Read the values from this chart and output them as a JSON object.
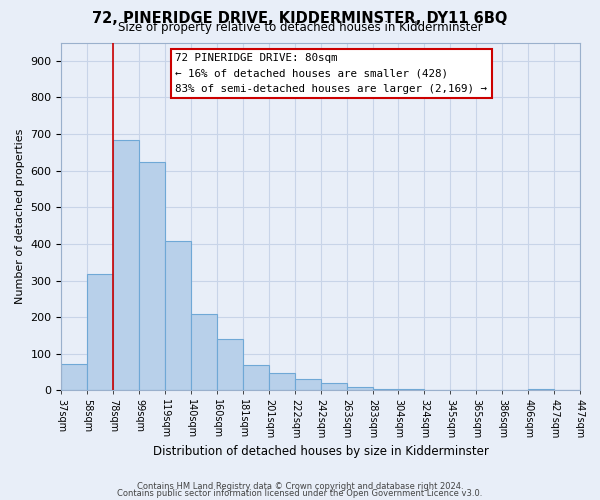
{
  "title": "72, PINERIDGE DRIVE, KIDDERMINSTER, DY11 6BQ",
  "subtitle": "Size of property relative to detached houses in Kidderminster",
  "xlabel": "Distribution of detached houses by size in Kidderminster",
  "ylabel": "Number of detached properties",
  "bar_labels": [
    "37sqm",
    "58sqm",
    "78sqm",
    "99sqm",
    "119sqm",
    "140sqm",
    "160sqm",
    "181sqm",
    "201sqm",
    "222sqm",
    "242sqm",
    "263sqm",
    "283sqm",
    "304sqm",
    "324sqm",
    "345sqm",
    "365sqm",
    "386sqm",
    "406sqm",
    "427sqm",
    "447sqm"
  ],
  "bar_values": [
    72,
    318,
    683,
    625,
    408,
    210,
    140,
    70,
    47,
    32,
    20,
    10,
    5,
    5,
    2,
    2,
    0,
    0,
    5,
    0
  ],
  "bar_color": "#b8d0ea",
  "bar_edge_color": "#6fa8d6",
  "ylim": [
    0,
    950
  ],
  "yticks": [
    0,
    100,
    200,
    300,
    400,
    500,
    600,
    700,
    800,
    900
  ],
  "vline_x": 2.0,
  "vline_color": "#cc0000",
  "annotation_title": "72 PINERIDGE DRIVE: 80sqm",
  "annotation_line1": "← 16% of detached houses are smaller (428)",
  "annotation_line2": "83% of semi-detached houses are larger (2,169) →",
  "annotation_box_color": "#ffffff",
  "annotation_box_edge": "#cc0000",
  "grid_color": "#c8d4e8",
  "background_color": "#e8eef8",
  "title_fontsize": 10.5,
  "subtitle_fontsize": 8.5,
  "footer1": "Contains HM Land Registry data © Crown copyright and database right 2024.",
  "footer2": "Contains public sector information licensed under the Open Government Licence v3.0."
}
